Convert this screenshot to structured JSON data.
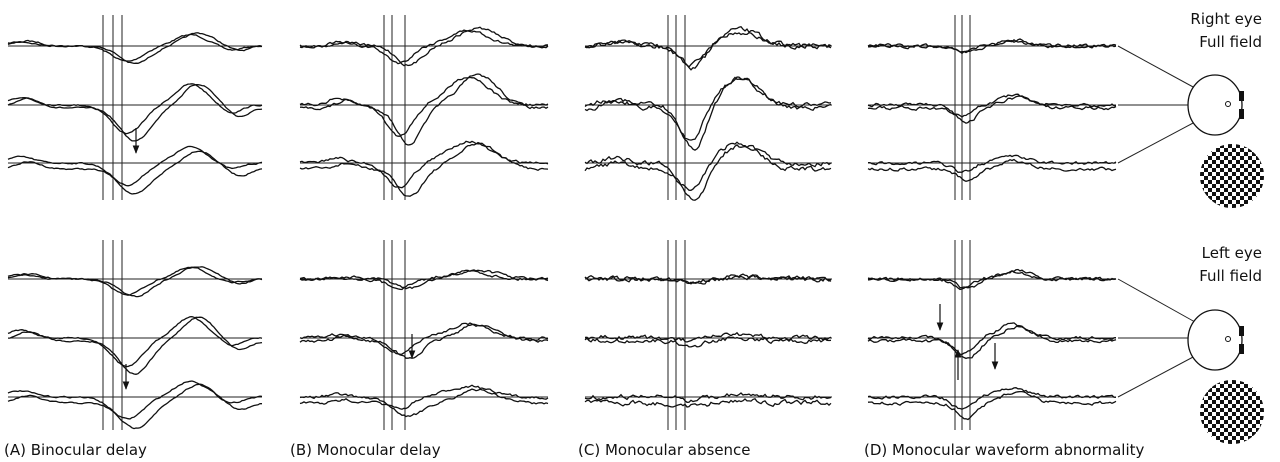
{
  "panels": [
    {
      "label": "(A) Binocular delay"
    },
    {
      "label": "(B) Monocular delay"
    },
    {
      "label": "(C) Monocular absence"
    },
    {
      "label": "(D) Monocular waveform abnormality"
    }
  ],
  "heads": [
    {
      "eye": "Right eye",
      "field": "Full field"
    },
    {
      "eye": "Left eye",
      "field": "Full field"
    }
  ]
}
